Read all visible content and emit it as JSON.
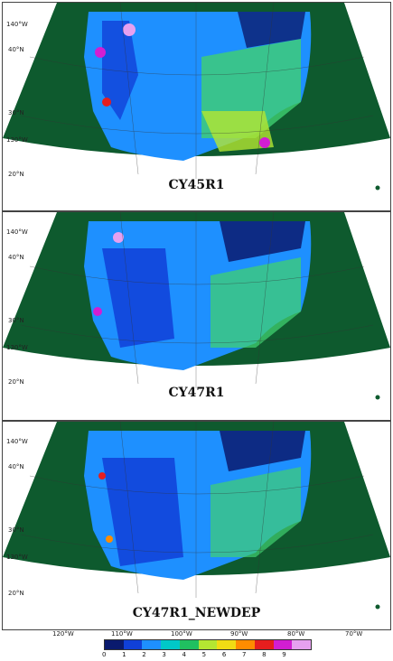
{
  "panels": [
    {
      "title": "CY45R1"
    },
    {
      "title": "CY47R1"
    },
    {
      "title": "CY47R1_NEWDEP"
    }
  ],
  "grid_labels": {
    "lon_left_top": "140°W",
    "lat_40": "40°N",
    "lat_30": "30°N",
    "lon_left_bottom": "130°W",
    "lat_20": "20°N"
  },
  "bottom_lon_labels": [
    "120°W",
    "110°W",
    "100°W",
    "90°W",
    "80°W",
    "70°W"
  ],
  "colorbar": {
    "ticks": [
      "0",
      "1",
      "2",
      "3",
      "4",
      "5",
      "6",
      "7",
      "8",
      "9"
    ],
    "colors": [
      "#0a1a6e",
      "#1040d8",
      "#1e90ff",
      "#00c8c8",
      "#20c060",
      "#b4e632",
      "#f0dc14",
      "#ff8c00",
      "#e61e1e",
      "#d21ed2",
      "#e6a0f0"
    ]
  },
  "map_colors": {
    "ocean_far": "#0a2266",
    "ocean_near": "#0e5a2e",
    "land_base": "#1e90ff",
    "land_east": "#40d070"
  }
}
